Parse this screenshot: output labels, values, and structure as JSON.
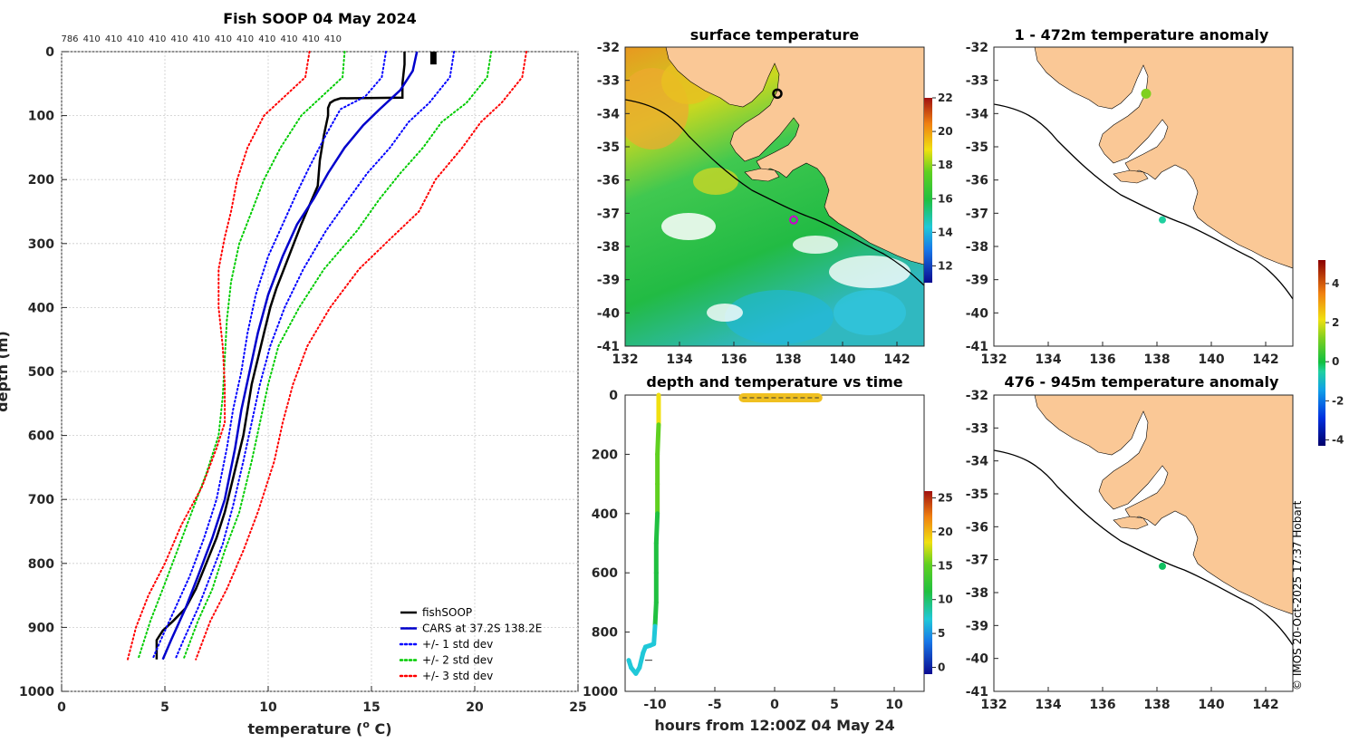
{
  "chart_data": [
    {
      "id": "profile",
      "type": "line",
      "title": "Fish SOOP 04 May 2024",
      "top_count_labels": [
        "786",
        "410",
        "410",
        "410",
        "410",
        "410",
        "410",
        "410",
        "410",
        "410",
        "410",
        "410",
        "410"
      ],
      "xlabel": "temperature (o C)",
      "xlabel_main": "temperature (",
      "xlabel_sup": "o",
      "xlabel_tail": " C)",
      "ylabel": "depth (m)",
      "xlim": [
        0,
        25
      ],
      "ylim": [
        1000,
        0
      ],
      "xticks": [
        0,
        5,
        10,
        15,
        20,
        25
      ],
      "yticks": [
        0,
        100,
        200,
        300,
        400,
        500,
        600,
        700,
        800,
        900,
        1000
      ],
      "grid": true,
      "legend_placement": "bottom-right",
      "series": [
        {
          "name": "fishSOOP",
          "color": "#000000",
          "style": "solid",
          "points": [
            [
              16.6,
              0
            ],
            [
              16.6,
              20
            ],
            [
              16.5,
              50
            ],
            [
              16.5,
              72
            ],
            [
              13.5,
              73
            ],
            [
              13.2,
              76
            ],
            [
              13.0,
              80
            ],
            [
              12.9,
              88
            ],
            [
              12.9,
              100
            ],
            [
              12.7,
              130
            ],
            [
              12.5,
              170
            ],
            [
              12.4,
              210
            ],
            [
              12.0,
              240
            ],
            [
              11.6,
              270
            ],
            [
              11.3,
              295
            ],
            [
              11.0,
              320
            ],
            [
              10.7,
              345
            ],
            [
              10.4,
              370
            ],
            [
              10.1,
              400
            ],
            [
              9.8,
              440
            ],
            [
              9.5,
              480
            ],
            [
              9.2,
              520
            ],
            [
              9.0,
              560
            ],
            [
              8.8,
              600
            ],
            [
              8.5,
              640
            ],
            [
              8.2,
              680
            ],
            [
              7.9,
              720
            ],
            [
              7.5,
              760
            ],
            [
              7.0,
              800
            ],
            [
              6.5,
              840
            ],
            [
              6.0,
              870
            ],
            [
              5.4,
              890
            ],
            [
              4.9,
              905
            ],
            [
              4.6,
              920
            ],
            [
              4.6,
              950
            ]
          ]
        },
        {
          "name": "CARS at 37.2S 138.2E",
          "color": "#0000cc",
          "style": "solid",
          "points": [
            [
              17.2,
              0
            ],
            [
              17.0,
              30
            ],
            [
              16.4,
              60
            ],
            [
              15.4,
              90
            ],
            [
              14.6,
              115
            ],
            [
              13.7,
              150
            ],
            [
              12.9,
              190
            ],
            [
              12.2,
              230
            ],
            [
              11.4,
              270
            ],
            [
              10.7,
              320
            ],
            [
              10.0,
              380
            ],
            [
              9.5,
              440
            ],
            [
              9.1,
              500
            ],
            [
              8.7,
              560
            ],
            [
              8.4,
              620
            ],
            [
              7.9,
              700
            ],
            [
              7.3,
              760
            ],
            [
              6.6,
              820
            ],
            [
              6.0,
              870
            ],
            [
              5.3,
              920
            ],
            [
              4.9,
              950
            ]
          ]
        },
        {
          "name": "+/- 1 std dev",
          "color": "#0000ff",
          "style": "dotted",
          "points": [
            [
              15.7,
              0
            ],
            [
              15.5,
              40
            ],
            [
              14.7,
              70
            ],
            [
              13.5,
              90
            ],
            [
              12.8,
              130
            ],
            [
              12.0,
              180
            ],
            [
              11.4,
              220
            ],
            [
              10.7,
              270
            ],
            [
              10.0,
              320
            ],
            [
              9.4,
              380
            ],
            [
              9.0,
              440
            ],
            [
              8.7,
              500
            ],
            [
              8.3,
              560
            ],
            [
              8.0,
              620
            ],
            [
              7.5,
              700
            ],
            [
              6.9,
              760
            ],
            [
              6.2,
              820
            ],
            [
              5.5,
              870
            ],
            [
              4.8,
              920
            ],
            [
              4.4,
              950
            ]
          ]
        },
        {
          "name": "+/- 1 std dev upper",
          "color": "#0000ff",
          "style": "dotted",
          "legend": false,
          "points": [
            [
              19.0,
              0
            ],
            [
              18.8,
              40
            ],
            [
              17.8,
              80
            ],
            [
              16.8,
              110
            ],
            [
              15.9,
              150
            ],
            [
              14.8,
              190
            ],
            [
              13.9,
              230
            ],
            [
              12.8,
              280
            ],
            [
              11.7,
              340
            ],
            [
              10.8,
              400
            ],
            [
              10.1,
              460
            ],
            [
              9.6,
              520
            ],
            [
              9.2,
              580
            ],
            [
              8.8,
              640
            ],
            [
              8.3,
              710
            ],
            [
              7.8,
              770
            ],
            [
              7.2,
              820
            ],
            [
              6.6,
              870
            ],
            [
              5.9,
              920
            ],
            [
              5.5,
              950
            ]
          ]
        },
        {
          "name": "+/- 2 std dev",
          "color": "#00cc00",
          "style": "dotted",
          "points": [
            [
              13.7,
              0
            ],
            [
              13.6,
              40
            ],
            [
              12.6,
              70
            ],
            [
              11.6,
              100
            ],
            [
              10.6,
              150
            ],
            [
              9.8,
              200
            ],
            [
              9.2,
              250
            ],
            [
              8.6,
              300
            ],
            [
              8.2,
              360
            ],
            [
              8.0,
              420
            ],
            [
              7.9,
              480
            ],
            [
              7.8,
              540
            ],
            [
              7.6,
              600
            ],
            [
              7.0,
              660
            ],
            [
              6.3,
              720
            ],
            [
              5.6,
              780
            ],
            [
              4.9,
              840
            ],
            [
              4.3,
              890
            ],
            [
              3.7,
              950
            ]
          ]
        },
        {
          "name": "+/- 2 std dev upper",
          "color": "#00cc00",
          "style": "dotted",
          "legend": false,
          "points": [
            [
              20.8,
              0
            ],
            [
              20.6,
              40
            ],
            [
              19.6,
              80
            ],
            [
              18.4,
              110
            ],
            [
              17.5,
              150
            ],
            [
              16.4,
              190
            ],
            [
              15.4,
              230
            ],
            [
              14.3,
              280
            ],
            [
              12.7,
              340
            ],
            [
              11.5,
              400
            ],
            [
              10.5,
              460
            ],
            [
              10.0,
              520
            ],
            [
              9.6,
              580
            ],
            [
              9.2,
              640
            ],
            [
              8.6,
              720
            ],
            [
              7.9,
              780
            ],
            [
              7.3,
              840
            ],
            [
              6.6,
              890
            ],
            [
              5.9,
              950
            ]
          ]
        },
        {
          "name": "+/- 3 std dev",
          "color": "#ff0000",
          "style": "dotted",
          "points": [
            [
              12.0,
              0
            ],
            [
              11.8,
              40
            ],
            [
              10.8,
              70
            ],
            [
              9.8,
              100
            ],
            [
              9.0,
              150
            ],
            [
              8.5,
              200
            ],
            [
              8.2,
              250
            ],
            [
              7.9,
              290
            ],
            [
              7.6,
              340
            ],
            [
              7.6,
              400
            ],
            [
              7.8,
              460
            ],
            [
              7.9,
              520
            ],
            [
              7.9,
              580
            ],
            [
              7.5,
              620
            ],
            [
              6.8,
              680
            ],
            [
              5.8,
              740
            ],
            [
              5.0,
              800
            ],
            [
              4.2,
              850
            ],
            [
              3.6,
              900
            ],
            [
              3.2,
              950
            ]
          ]
        },
        {
          "name": "+/- 3 std dev upper",
          "color": "#ff0000",
          "style": "dotted",
          "legend": false,
          "points": [
            [
              22.5,
              0
            ],
            [
              22.3,
              40
            ],
            [
              21.3,
              80
            ],
            [
              20.3,
              110
            ],
            [
              19.4,
              150
            ],
            [
              18.1,
              200
            ],
            [
              17.3,
              250
            ],
            [
              16.0,
              290
            ],
            [
              14.4,
              340
            ],
            [
              13.0,
              400
            ],
            [
              11.9,
              460
            ],
            [
              11.2,
              520
            ],
            [
              10.7,
              580
            ],
            [
              10.3,
              640
            ],
            [
              9.5,
              720
            ],
            [
              8.8,
              780
            ],
            [
              8.0,
              840
            ],
            [
              7.2,
              890
            ],
            [
              6.5,
              950
            ]
          ]
        }
      ]
    },
    {
      "id": "sst_map",
      "type": "heatmap",
      "title": "surface temperature",
      "xlim": [
        132,
        143
      ],
      "ylim": [
        -41,
        -32
      ],
      "xticks": [
        132,
        134,
        136,
        138,
        140,
        142
      ],
      "yticks": [
        -32,
        -33,
        -34,
        -35,
        -36,
        -37,
        -38,
        -39,
        -40,
        -41
      ],
      "colorbar": {
        "min": 11,
        "max": 22,
        "ticks": [
          12,
          14,
          16,
          18,
          20,
          22
        ]
      },
      "marker_black": {
        "lon": 137.6,
        "lat": -33.4
      },
      "marker_magenta": {
        "lon": 138.2,
        "lat": -37.2
      }
    },
    {
      "id": "anom_shallow",
      "type": "heatmap",
      "title": "1 - 472m temperature anomaly",
      "xlim": [
        132,
        143
      ],
      "ylim": [
        -41,
        -32
      ],
      "xticks": [
        132,
        134,
        136,
        138,
        140,
        142
      ],
      "yticks": [
        -32,
        -33,
        -34,
        -35,
        -36,
        -37,
        -38,
        -39,
        -40,
        -41
      ],
      "points": [
        {
          "lon": 137.6,
          "lat": -33.4,
          "value": 0.5
        },
        {
          "lon": 138.2,
          "lat": -37.2,
          "value": -0.5
        }
      ]
    },
    {
      "id": "anom_deep",
      "type": "heatmap",
      "title": "476 - 945m temperature anomaly",
      "xlim": [
        132,
        143
      ],
      "ylim": [
        -41,
        -32
      ],
      "xticks": [
        132,
        134,
        136,
        138,
        140,
        142
      ],
      "yticks": [
        -32,
        -33,
        -34,
        -35,
        -36,
        -37,
        -38,
        -39,
        -40,
        -41
      ],
      "points": [
        {
          "lon": 138.2,
          "lat": -37.2,
          "value": -0.3
        }
      ]
    },
    {
      "id": "anom_colorbar",
      "type": "heatmap",
      "min": -4.3,
      "max": 5.2,
      "ticks": [
        4,
        2,
        0,
        -2,
        -4
      ]
    },
    {
      "id": "depth_time",
      "type": "scatter",
      "title": "depth and temperature vs time",
      "xlabel": "hours from 12:00Z 04 May 24",
      "xlim": [
        -12.5,
        12.5
      ],
      "ylim": [
        1000,
        0
      ],
      "xticks": [
        -10,
        -5,
        0,
        5,
        10
      ],
      "yticks": [
        0,
        200,
        400,
        600,
        800,
        1000
      ],
      "colorbar": {
        "min": -1,
        "max": 26,
        "ticks": [
          0,
          5,
          10,
          15,
          20,
          25
        ]
      },
      "surface_bar": {
        "x_start": -3,
        "x_end": 4,
        "depth": 0
      },
      "track": [
        [
          -9.7,
          0,
          17
        ],
        [
          -9.7,
          100,
          16
        ],
        [
          -9.8,
          200,
          14
        ],
        [
          -9.8,
          300,
          13
        ],
        [
          -9.8,
          400,
          12
        ],
        [
          -9.9,
          500,
          11
        ],
        [
          -9.9,
          600,
          10
        ],
        [
          -9.9,
          700,
          9
        ],
        [
          -10.0,
          780,
          8
        ],
        [
          -10.1,
          840,
          7
        ],
        [
          -10.4,
          845,
          7
        ],
        [
          -10.8,
          850,
          6
        ],
        [
          -11.0,
          870,
          6
        ],
        [
          -11.3,
          920,
          5
        ],
        [
          -11.6,
          940,
          5
        ],
        [
          -12.0,
          920,
          5
        ],
        [
          -12.2,
          895,
          5
        ]
      ]
    }
  ],
  "credit": "© IMOS 20-Oct-2025 17:37 Hobart"
}
